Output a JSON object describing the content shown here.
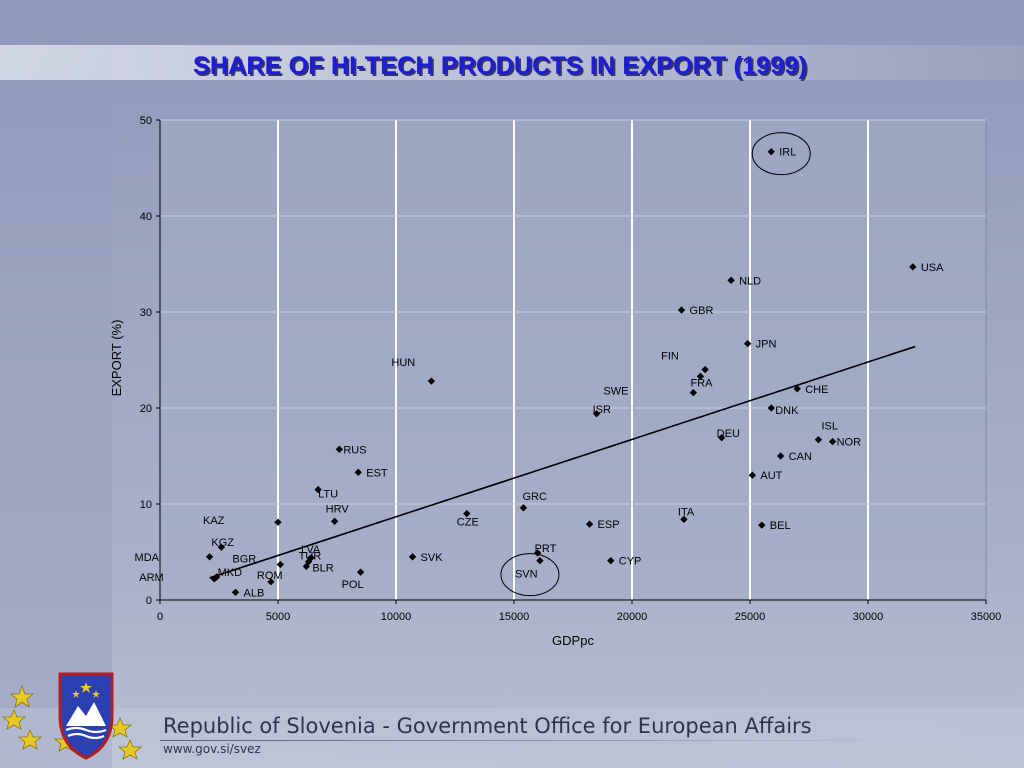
{
  "slide": {
    "title": "SHARE OF HI-TECH PRODUCTS IN EXPORT (1999)",
    "footer_title": "Republic of Slovenia - Government Office for European Affairs",
    "footer_url": "www.gov.si/svez",
    "colors": {
      "title": "#1d1dd8",
      "plot_bg": "#a3abc6",
      "grid": "#ffffff",
      "marker": "#000000"
    }
  },
  "chart_data": {
    "type": "scatter",
    "title": "SHARE OF HI-TECH PRODUCTS IN EXPORT (1999)",
    "xlabel": "GDPpc",
    "ylabel": "EXPORT (%)",
    "xlim": [
      0,
      35000
    ],
    "ylim": [
      0,
      50
    ],
    "xticks": [
      0,
      5000,
      10000,
      15000,
      20000,
      25000,
      30000,
      35000
    ],
    "yticks": [
      0,
      10,
      20,
      30,
      40,
      50
    ],
    "grid": "vertical white, horizontal light",
    "highlighted": [
      "IRL",
      "SVN"
    ],
    "points": [
      {
        "label": "IRL",
        "x": 25900,
        "y": 46.7
      },
      {
        "label": "USA",
        "x": 31900,
        "y": 34.7
      },
      {
        "label": "NLD",
        "x": 24200,
        "y": 33.3
      },
      {
        "label": "GBR",
        "x": 22100,
        "y": 30.2
      },
      {
        "label": "JPN",
        "x": 24900,
        "y": 26.7
      },
      {
        "label": "FIN",
        "x": 23100,
        "y": 24.0
      },
      {
        "label": "FRA",
        "x": 22900,
        "y": 23.3
      },
      {
        "label": "HUN",
        "x": 11500,
        "y": 22.8
      },
      {
        "label": "CHE",
        "x": 27000,
        "y": 22.0
      },
      {
        "label": "SWE",
        "x": 22600,
        "y": 21.6
      },
      {
        "label": "DNK",
        "x": 25900,
        "y": 20.0
      },
      {
        "label": "ISR",
        "x": 18500,
        "y": 19.4
      },
      {
        "label": "ISL",
        "x": 27900,
        "y": 16.7
      },
      {
        "label": "NOR",
        "x": 28500,
        "y": 16.5
      },
      {
        "label": "DEU",
        "x": 23800,
        "y": 16.9
      },
      {
        "label": "RUS",
        "x": 7600,
        "y": 15.7
      },
      {
        "label": "CAN",
        "x": 26300,
        "y": 15.0
      },
      {
        "label": "EST",
        "x": 8400,
        "y": 13.3
      },
      {
        "label": "AUT",
        "x": 25100,
        "y": 13.0
      },
      {
        "label": "LTU",
        "x": 6700,
        "y": 11.5
      },
      {
        "label": "GRC",
        "x": 15400,
        "y": 9.6
      },
      {
        "label": "CZE",
        "x": 13000,
        "y": 9.0
      },
      {
        "label": "ITA",
        "x": 22200,
        "y": 8.4
      },
      {
        "label": "HRV",
        "x": 7400,
        "y": 8.2
      },
      {
        "label": "KAZ",
        "x": 5000,
        "y": 8.1
      },
      {
        "label": "ESP",
        "x": 18200,
        "y": 7.9
      },
      {
        "label": "BEL",
        "x": 25500,
        "y": 7.8
      },
      {
        "label": "KGZ",
        "x": 2600,
        "y": 5.5
      },
      {
        "label": "PRT",
        "x": 16000,
        "y": 4.9
      },
      {
        "label": "LVA",
        "x": 6400,
        "y": 4.4
      },
      {
        "label": "MDA",
        "x": 2100,
        "y": 4.5
      },
      {
        "label": "SVK",
        "x": 10700,
        "y": 4.5
      },
      {
        "label": "SVN",
        "x": 16100,
        "y": 4.1
      },
      {
        "label": "CYP",
        "x": 19100,
        "y": 4.1
      },
      {
        "label": "TUR",
        "x": 6300,
        "y": 4.0
      },
      {
        "label": "BGR",
        "x": 5100,
        "y": 3.7
      },
      {
        "label": "BLR",
        "x": 6200,
        "y": 3.5
      },
      {
        "label": "POL",
        "x": 8500,
        "y": 2.9
      },
      {
        "label": "MKD",
        "x": 2400,
        "y": 2.4
      },
      {
        "label": "ROM",
        "x": 4700,
        "y": 1.9
      },
      {
        "label": "ARM",
        "x": 2300,
        "y": 2.2
      },
      {
        "label": "ALB",
        "x": 3200,
        "y": 0.8
      }
    ],
    "trendline": {
      "x": [
        2100,
        32000
      ],
      "y": [
        2.3,
        26.4
      ]
    }
  }
}
